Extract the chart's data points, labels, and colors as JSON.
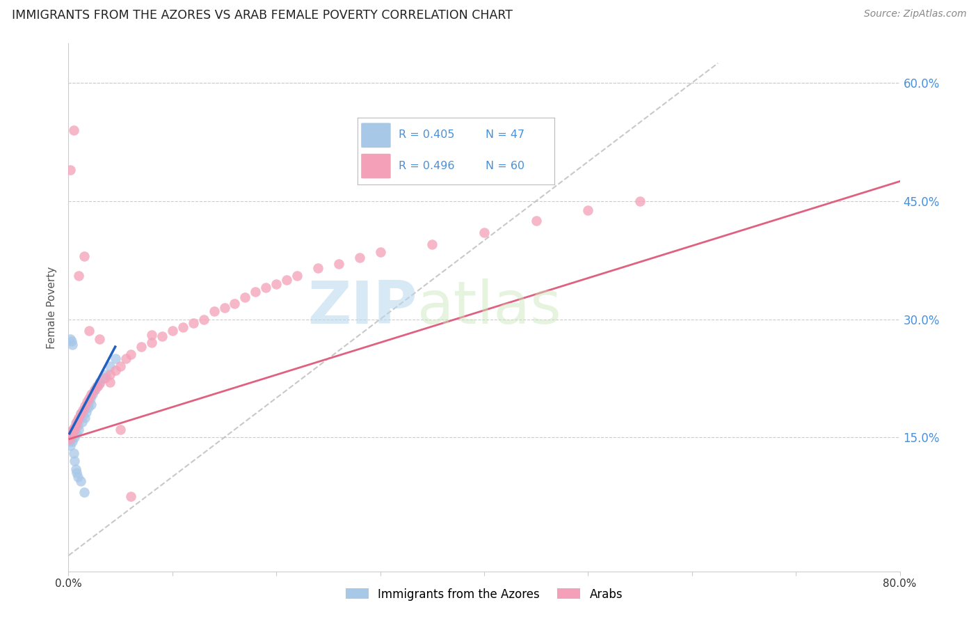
{
  "title": "IMMIGRANTS FROM THE AZORES VS ARAB FEMALE POVERTY CORRELATION CHART",
  "source": "Source: ZipAtlas.com",
  "ylabel": "Female Poverty",
  "xlim": [
    0,
    0.8
  ],
  "ylim": [
    -0.02,
    0.65
  ],
  "xtick_vals": [
    0.0,
    0.1,
    0.2,
    0.3,
    0.4,
    0.5,
    0.6,
    0.7,
    0.8
  ],
  "xtick_labels": [
    "0.0%",
    "",
    "",
    "",
    "",
    "",
    "",
    "",
    "80.0%"
  ],
  "ytick_vals": [
    0.15,
    0.3,
    0.45,
    0.6
  ],
  "ytick_labels": [
    "15.0%",
    "30.0%",
    "45.0%",
    "60.0%"
  ],
  "legend_r1": "R = 0.405",
  "legend_n1": "N = 47",
  "legend_r2": "R = 0.496",
  "legend_n2": "N = 60",
  "color_blue": "#a8c8e8",
  "color_pink": "#f4a0b8",
  "color_blue_line": "#2060c0",
  "color_pink_line": "#e06080",
  "color_dashed": "#bbbbbb",
  "color_tick_right": "#4a90d9",
  "color_title": "#222222",
  "watermark_zip": "ZIP",
  "watermark_atlas": "atlas",
  "scatter_blue_x": [
    0.001,
    0.001,
    0.002,
    0.002,
    0.003,
    0.003,
    0.004,
    0.004,
    0.005,
    0.005,
    0.006,
    0.006,
    0.007,
    0.008,
    0.009,
    0.01,
    0.01,
    0.011,
    0.012,
    0.013,
    0.014,
    0.015,
    0.016,
    0.017,
    0.018,
    0.019,
    0.02,
    0.021,
    0.022,
    0.023,
    0.025,
    0.027,
    0.03,
    0.033,
    0.036,
    0.04,
    0.045,
    0.002,
    0.003,
    0.004,
    0.005,
    0.006,
    0.007,
    0.008,
    0.009,
    0.012,
    0.015
  ],
  "scatter_blue_y": [
    0.155,
    0.145,
    0.15,
    0.14,
    0.148,
    0.158,
    0.152,
    0.145,
    0.16,
    0.155,
    0.162,
    0.15,
    0.168,
    0.155,
    0.165,
    0.172,
    0.16,
    0.175,
    0.18,
    0.17,
    0.178,
    0.185,
    0.175,
    0.182,
    0.19,
    0.188,
    0.195,
    0.2,
    0.192,
    0.205,
    0.21,
    0.215,
    0.22,
    0.225,
    0.23,
    0.24,
    0.25,
    0.275,
    0.272,
    0.268,
    0.13,
    0.12,
    0.11,
    0.105,
    0.1,
    0.095,
    0.08
  ],
  "scatter_pink_x": [
    0.001,
    0.002,
    0.003,
    0.004,
    0.005,
    0.006,
    0.007,
    0.008,
    0.009,
    0.01,
    0.012,
    0.014,
    0.016,
    0.018,
    0.02,
    0.022,
    0.025,
    0.028,
    0.03,
    0.035,
    0.04,
    0.045,
    0.05,
    0.055,
    0.06,
    0.07,
    0.08,
    0.09,
    0.1,
    0.11,
    0.12,
    0.13,
    0.14,
    0.15,
    0.16,
    0.17,
    0.18,
    0.19,
    0.2,
    0.21,
    0.22,
    0.24,
    0.26,
    0.28,
    0.3,
    0.35,
    0.4,
    0.45,
    0.5,
    0.55,
    0.002,
    0.005,
    0.01,
    0.015,
    0.02,
    0.03,
    0.04,
    0.05,
    0.06,
    0.08
  ],
  "scatter_pink_y": [
    0.148,
    0.152,
    0.158,
    0.155,
    0.162,
    0.16,
    0.165,
    0.17,
    0.172,
    0.175,
    0.18,
    0.185,
    0.19,
    0.195,
    0.2,
    0.205,
    0.21,
    0.215,
    0.218,
    0.225,
    0.23,
    0.235,
    0.24,
    0.25,
    0.255,
    0.265,
    0.27,
    0.278,
    0.285,
    0.29,
    0.295,
    0.3,
    0.31,
    0.315,
    0.32,
    0.328,
    0.335,
    0.34,
    0.345,
    0.35,
    0.355,
    0.365,
    0.37,
    0.378,
    0.385,
    0.395,
    0.41,
    0.425,
    0.438,
    0.45,
    0.49,
    0.54,
    0.355,
    0.38,
    0.285,
    0.275,
    0.22,
    0.16,
    0.075,
    0.28
  ],
  "blue_line_x": [
    0.001,
    0.045
  ],
  "blue_line_y": [
    0.155,
    0.265
  ],
  "pink_line_x": [
    0.001,
    0.8
  ],
  "pink_line_y": [
    0.148,
    0.475
  ],
  "diag_line_x": [
    0.0,
    0.625
  ],
  "diag_line_y": [
    0.0,
    0.625
  ]
}
